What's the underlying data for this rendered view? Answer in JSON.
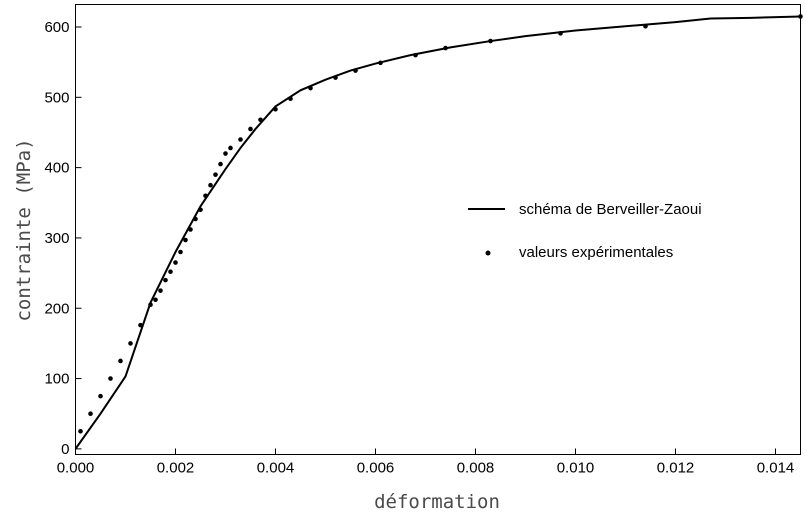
{
  "chart_data": {
    "type": "line",
    "title": "",
    "xlabel": "déformation",
    "ylabel": "contrainte (MPa)",
    "xlim": [
      0,
      0.0145
    ],
    "ylim": [
      -8,
      632
    ],
    "x_ticks": [
      "0.000",
      "0.002",
      "0.004",
      "0.006",
      "0.008",
      "0.010",
      "0.012",
      "0.014"
    ],
    "y_ticks": [
      "0",
      "100",
      "200",
      "300",
      "400",
      "500",
      "600"
    ],
    "grid": false,
    "legend_position": "right",
    "series": [
      {
        "name": "schéma de Berveiller-Zaoui",
        "style": "line",
        "color": "#000000",
        "x": [
          0,
          0.0005,
          0.001,
          0.0015,
          0.002,
          0.0025,
          0.003,
          0.0033,
          0.0036,
          0.004,
          0.0045,
          0.005,
          0.0055,
          0.006,
          0.0067,
          0.0075,
          0.0083,
          0.009,
          0.01,
          0.011,
          0.012,
          0.0127,
          0.0135,
          0.0145
        ],
        "y": [
          0,
          50,
          103,
          208,
          280,
          345,
          398,
          428,
          455,
          487,
          510,
          525,
          538,
          548,
          560,
          571,
          580,
          587,
          595,
          601,
          607,
          612,
          613,
          615
        ]
      },
      {
        "name": "valeurs expérimentales",
        "style": "points",
        "color": "#000000",
        "x": [
          0.0001,
          0.0003,
          0.0005,
          0.0007,
          0.0009,
          0.0011,
          0.0013,
          0.0015,
          0.0016,
          0.0017,
          0.0018,
          0.0019,
          0.002,
          0.0021,
          0.0022,
          0.0023,
          0.0024,
          0.0025,
          0.0026,
          0.0027,
          0.0028,
          0.0029,
          0.003,
          0.0031,
          0.0033,
          0.0035,
          0.0037,
          0.004,
          0.0043,
          0.0047,
          0.0052,
          0.0056,
          0.0061,
          0.0068,
          0.0074,
          0.0083,
          0.0097,
          0.0114,
          0.0145
        ],
        "y": [
          25,
          50,
          75,
          100,
          125,
          150,
          176,
          205,
          212,
          225,
          240,
          252,
          265,
          280,
          297,
          312,
          327,
          340,
          360,
          375,
          390,
          405,
          420,
          428,
          440,
          455,
          468,
          483,
          498,
          513,
          528,
          538,
          549,
          560,
          570,
          580,
          591,
          601,
          615
        ]
      }
    ]
  }
}
